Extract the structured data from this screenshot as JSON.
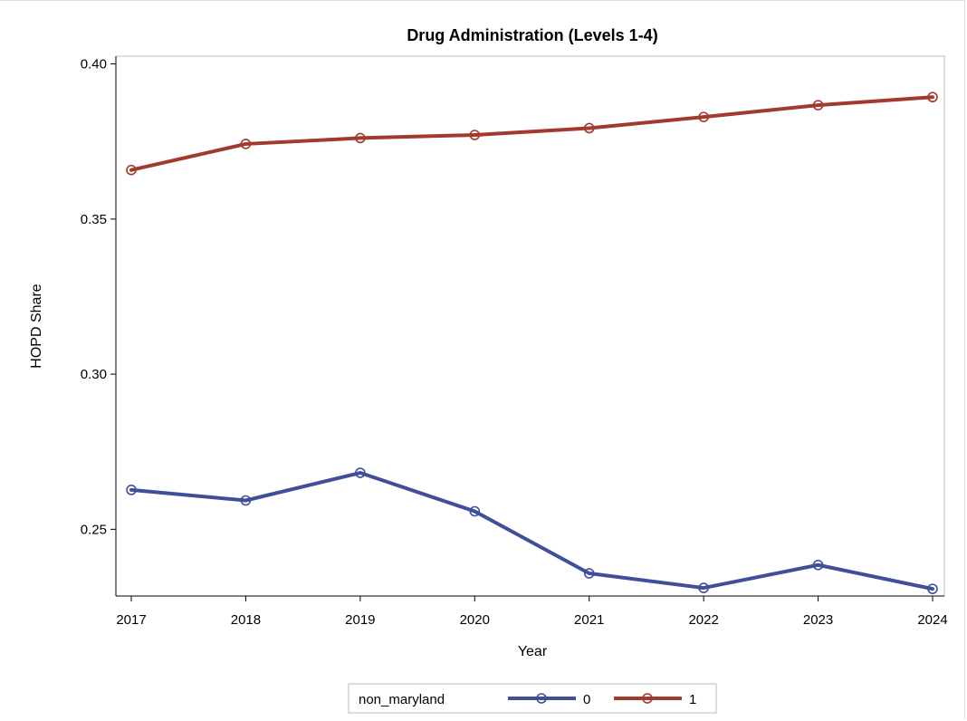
{
  "chart_data": {
    "type": "line",
    "title": "Drug Administration (Levels 1-4)",
    "xlabel": "Year",
    "ylabel": "HOPD Share",
    "x": [
      2017,
      2018,
      2019,
      2020,
      2021,
      2022,
      2023,
      2024
    ],
    "x_tick_labels": [
      "2017",
      "2018",
      "2019",
      "2020",
      "2021",
      "2022",
      "2023",
      "2024"
    ],
    "y_ticks": [
      0.25,
      0.3,
      0.35,
      0.4
    ],
    "y_tick_labels": [
      "0.25",
      "0.30",
      "0.35",
      "0.40"
    ],
    "ylim": [
      0.2285,
      0.4025
    ],
    "legend": {
      "title": "non_maryland",
      "placement": "bottom"
    },
    "series": [
      {
        "name": "0",
        "color": "#3f4f9a",
        "values": [
          0.2627,
          0.2593,
          0.2682,
          0.2558,
          0.2358,
          0.2311,
          0.2385,
          0.2308
        ]
      },
      {
        "name": "1",
        "color": "#a23a2d",
        "values": [
          0.3658,
          0.3742,
          0.3761,
          0.3771,
          0.3793,
          0.3829,
          0.3867,
          0.3893
        ]
      }
    ],
    "grid": false
  }
}
